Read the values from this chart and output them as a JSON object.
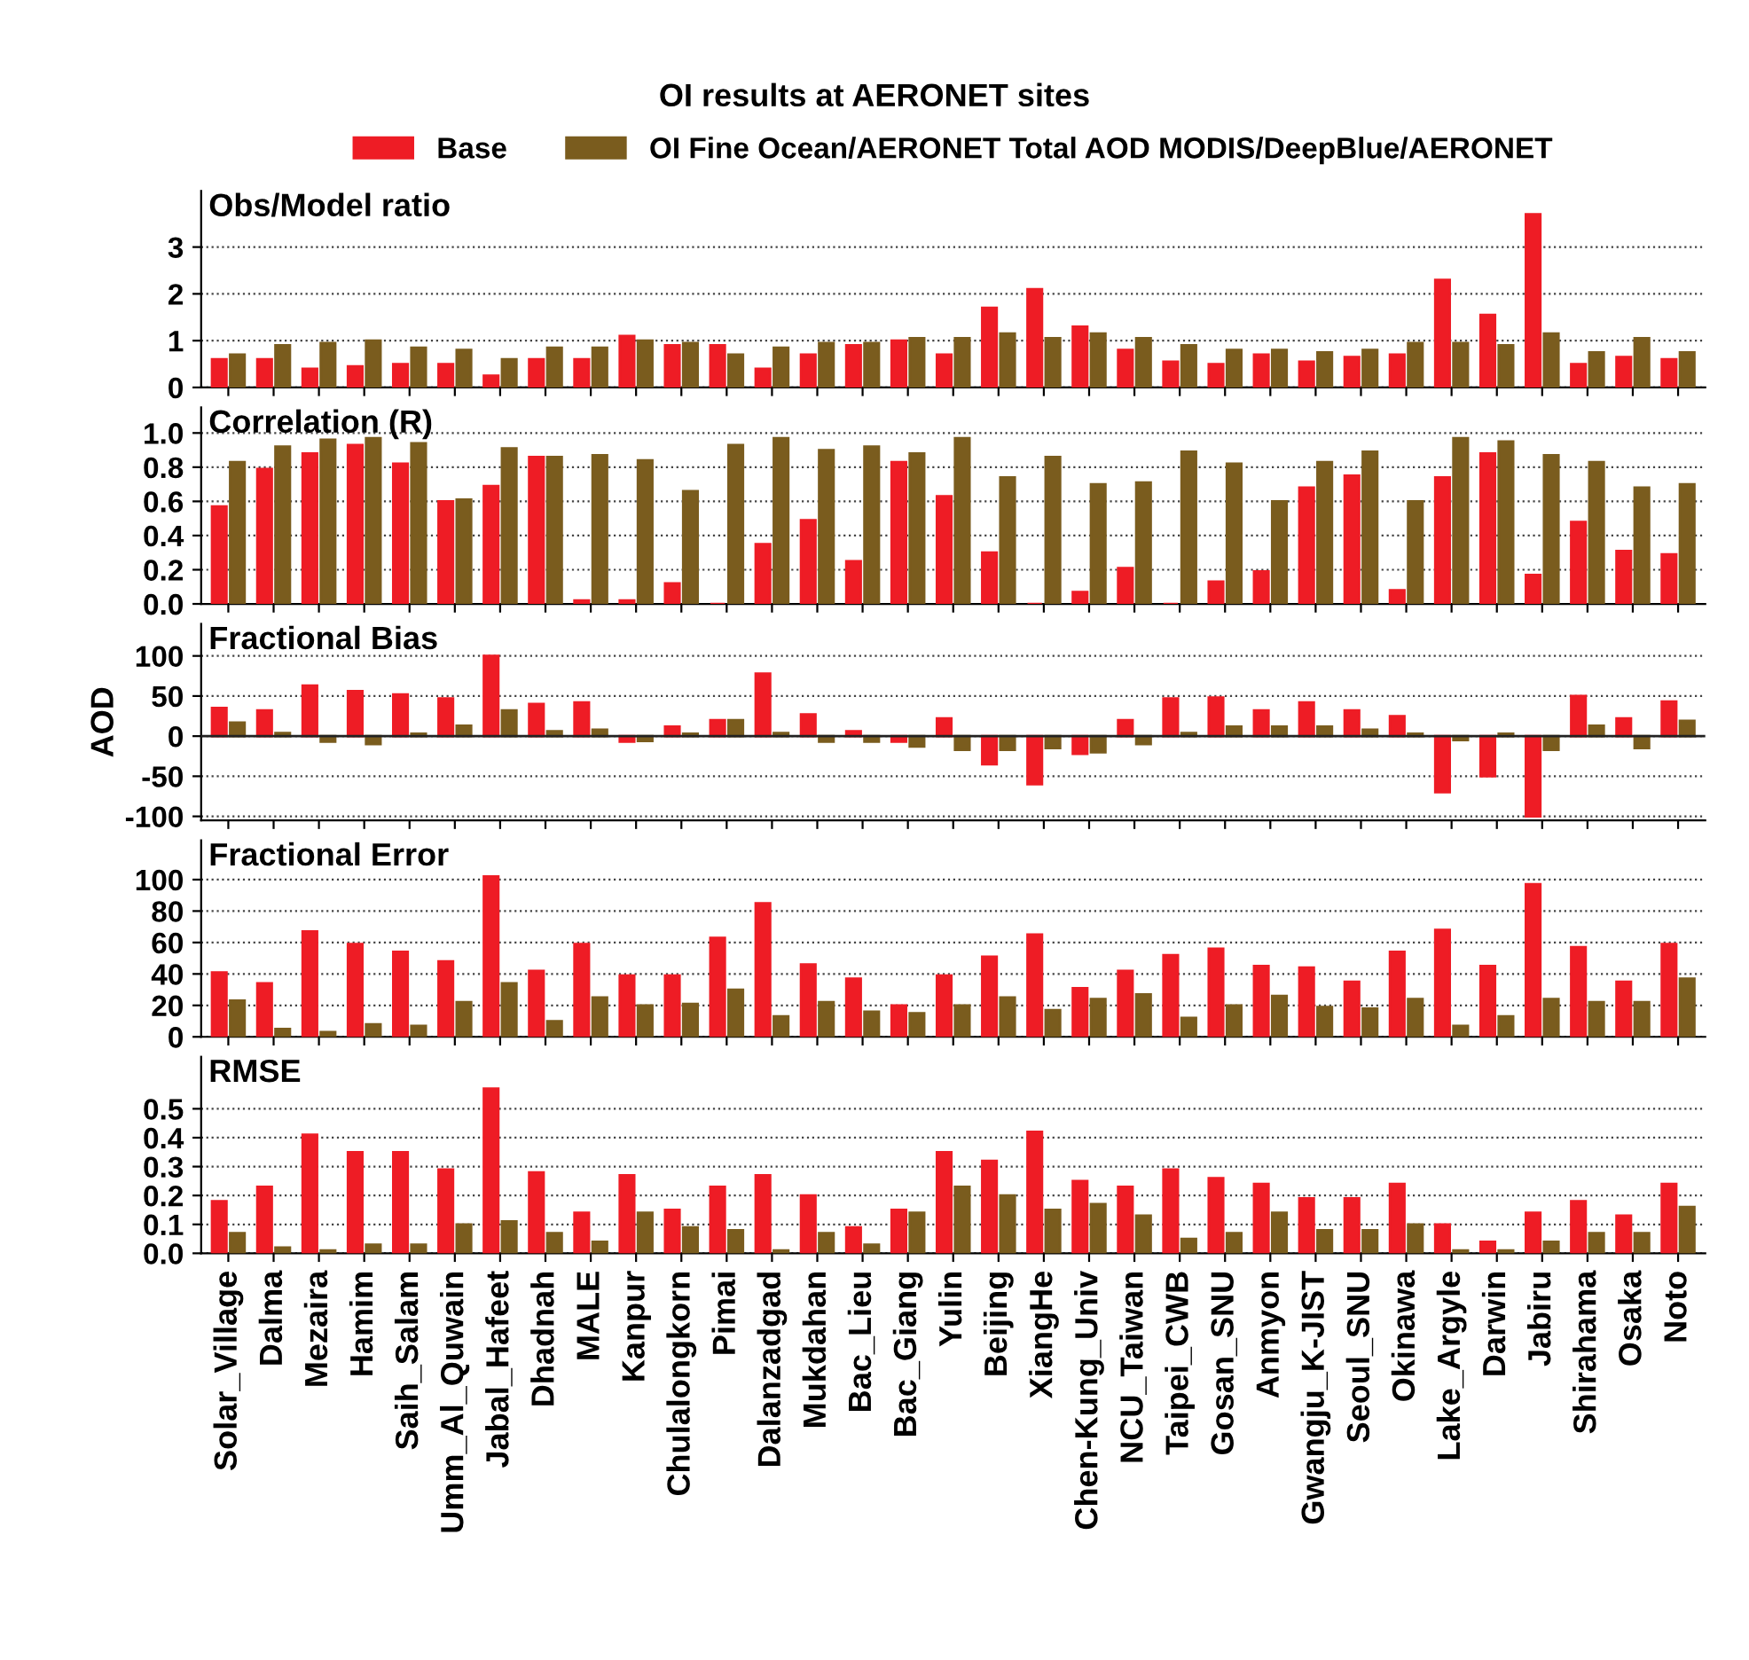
{
  "chart_data": [
    {
      "type": "bar",
      "title": "OI results at AERONET sites",
      "subtitle": "Obs/Model ratio",
      "legend": "top",
      "grid": "y",
      "tick_labels": "y",
      "ylim": [
        0,
        4.2
      ],
      "yticks": [
        0,
        1,
        2,
        3
      ],
      "series": [
        {
          "name": "Base",
          "color": "#ee1c25",
          "values": [
            0.6,
            0.6,
            0.4,
            0.45,
            0.5,
            0.5,
            0.25,
            0.6,
            0.6,
            1.1,
            0.9,
            0.9,
            0.4,
            0.7,
            0.9,
            1.0,
            0.7,
            1.7,
            2.1,
            1.3,
            0.8,
            0.55,
            0.5,
            0.7,
            0.55,
            0.65,
            0.7,
            2.3,
            1.55,
            3.7,
            0.5,
            0.65,
            0.6
          ]
        },
        {
          "name": "OI Fine Ocean/AERONET Total AOD MODIS/DeepBlue/AERONET",
          "color": "#7a5c1e",
          "values": [
            0.7,
            0.9,
            0.95,
            1.0,
            0.85,
            0.8,
            0.6,
            0.85,
            0.85,
            1.0,
            0.95,
            0.7,
            0.85,
            0.95,
            0.95,
            1.05,
            1.05,
            1.15,
            1.05,
            1.15,
            1.05,
            0.9,
            0.8,
            0.8,
            0.75,
            0.8,
            0.95,
            0.95,
            0.9,
            1.15,
            0.75,
            1.05,
            0.75
          ]
        }
      ]
    },
    {
      "type": "bar",
      "title": "Correlation (R)",
      "grid": "y",
      "tick_labels": "y",
      "ylim": [
        0,
        1.15
      ],
      "yticks": [
        {
          "value": 0,
          "label": "0.0"
        },
        {
          "value": 0.2,
          "label": "0.2"
        },
        {
          "value": 0.4,
          "label": "0.4"
        },
        {
          "value": 0.6,
          "label": "0.6"
        },
        {
          "value": 0.8,
          "label": "0.8"
        },
        {
          "value": 1.0,
          "label": "1.0"
        }
      ],
      "series": [
        {
          "color": "#ee1c25",
          "values": [
            0.57,
            0.79,
            0.88,
            0.93,
            0.82,
            0.6,
            0.69,
            0.86,
            0.02,
            0.02,
            0.12,
            0,
            0.35,
            0.49,
            0.25,
            0.83,
            0.63,
            0.3,
            0,
            0.07,
            0.21,
            0,
            0.13,
            0.19,
            0.68,
            0.75,
            0.08,
            0.74,
            0.88,
            0.17,
            0.48,
            0.31,
            0.29
          ]
        },
        {
          "color": "#7a5c1e",
          "values": [
            0.83,
            0.92,
            0.96,
            0.97,
            0.94,
            0.61,
            0.91,
            0.86,
            0.87,
            0.84,
            0.66,
            0.93,
            0.97,
            0.9,
            0.92,
            0.88,
            0.97,
            0.74,
            0.86,
            0.7,
            0.71,
            0.89,
            0.82,
            0.6,
            0.83,
            0.89,
            0.6,
            0.97,
            0.95,
            0.87,
            0.83,
            0.68,
            0.7
          ]
        }
      ]
    },
    {
      "type": "bar",
      "title": "Fractional Bias",
      "ylabel": "AOD",
      "grid": "y",
      "tick_labels": "y",
      "ylim": [
        -105,
        140
      ],
      "yticks": [
        -100,
        -50,
        0,
        50,
        100
      ],
      "series": [
        {
          "color": "#ee1c25",
          "values": [
            35,
            32,
            63,
            56,
            52,
            47,
            100,
            40,
            42,
            -7,
            12,
            20,
            78,
            27,
            6,
            -7,
            22,
            -35,
            -60,
            -22,
            20,
            47,
            48,
            32,
            42,
            32,
            25,
            -70,
            -50,
            -100,
            50,
            22,
            43
          ]
        },
        {
          "color": "#7a5c1e",
          "values": [
            17,
            4,
            -7,
            -10,
            3,
            13,
            32,
            6,
            8,
            -6,
            3,
            20,
            4,
            -7,
            -7,
            -13,
            -17,
            -17,
            -15,
            -20,
            -10,
            4,
            12,
            12,
            12,
            8,
            3,
            -5,
            3,
            -17,
            13,
            -15,
            19
          ]
        }
      ]
    },
    {
      "type": "bar",
      "title": "Fractional Error",
      "grid": "y",
      "tick_labels": "y",
      "ylim": [
        0,
        125
      ],
      "yticks": [
        0,
        20,
        40,
        60,
        80,
        100
      ],
      "series": [
        {
          "color": "#ee1c25",
          "values": [
            41,
            34,
            67,
            59,
            54,
            48,
            102,
            42,
            59,
            39,
            39,
            63,
            85,
            46,
            37,
            20,
            39,
            51,
            65,
            31,
            42,
            52,
            56,
            45,
            44,
            35,
            54,
            68,
            45,
            97,
            57,
            35,
            59
          ]
        },
        {
          "color": "#7a5c1e",
          "values": [
            23,
            5,
            3,
            8,
            7,
            22,
            34,
            10,
            25,
            20,
            21,
            30,
            13,
            22,
            16,
            15,
            20,
            25,
            17,
            24,
            27,
            12,
            20,
            26,
            19,
            18,
            24,
            7,
            13,
            24,
            22,
            22,
            37
          ]
        }
      ]
    },
    {
      "type": "bar",
      "title": "RMSE",
      "grid": "y",
      "categories": [
        "Solar_Village",
        "Dalma",
        "Mezaira",
        "Hamim",
        "Saih_Salam",
        "Umm_Al_Quwain",
        "Jabal_Hafeet",
        "Dhadnah",
        "MALE",
        "Kanpur",
        "Chulalongkorn",
        "Pimai",
        "Dalanzadgad",
        "Mukdahan",
        "Bac_Lieu",
        "Bac_Giang",
        "Yulin",
        "Beijing",
        "XiangHe",
        "Chen-Kung_Univ",
        "NCU_Taiwan",
        "Taipei_CWB",
        "Gosan_SNU",
        "Anmyon",
        "Gwangju_K-JIST",
        "Seoul_SNU",
        "Okinawa",
        "Lake_Argyle",
        "Darwin",
        "Jabiru",
        "Shirahama",
        "Osaka",
        "Noto"
      ],
      "ylim": [
        0,
        0.68
      ],
      "yticks": [
        {
          "value": 0,
          "label": "0.0"
        },
        {
          "value": 0.1,
          "label": "0.1"
        },
        {
          "value": 0.2,
          "label": "0.2"
        },
        {
          "value": 0.3,
          "label": "0.3"
        },
        {
          "value": 0.4,
          "label": "0.4"
        },
        {
          "value": 0.5,
          "label": "0.5"
        }
      ],
      "series": [
        {
          "color": "#ee1c25",
          "values": [
            0.18,
            0.23,
            0.41,
            0.35,
            0.35,
            0.29,
            0.57,
            0.28,
            0.14,
            0.27,
            0.15,
            0.23,
            0.27,
            0.2,
            0.09,
            0.15,
            0.35,
            0.32,
            0.42,
            0.25,
            0.23,
            0.29,
            0.26,
            0.24,
            0.19,
            0.19,
            0.24,
            0.1,
            0.04,
            0.14,
            0.18,
            0.13,
            0.24
          ]
        },
        {
          "color": "#7a5c1e",
          "values": [
            0.07,
            0.02,
            0.01,
            0.03,
            0.03,
            0.1,
            0.11,
            0.07,
            0.04,
            0.14,
            0.09,
            0.08,
            0.01,
            0.07,
            0.03,
            0.14,
            0.23,
            0.2,
            0.15,
            0.17,
            0.13,
            0.05,
            0.07,
            0.14,
            0.08,
            0.08,
            0.1,
            0.01,
            0.01,
            0.04,
            0.07,
            0.07,
            0.16
          ]
        }
      ]
    }
  ]
}
